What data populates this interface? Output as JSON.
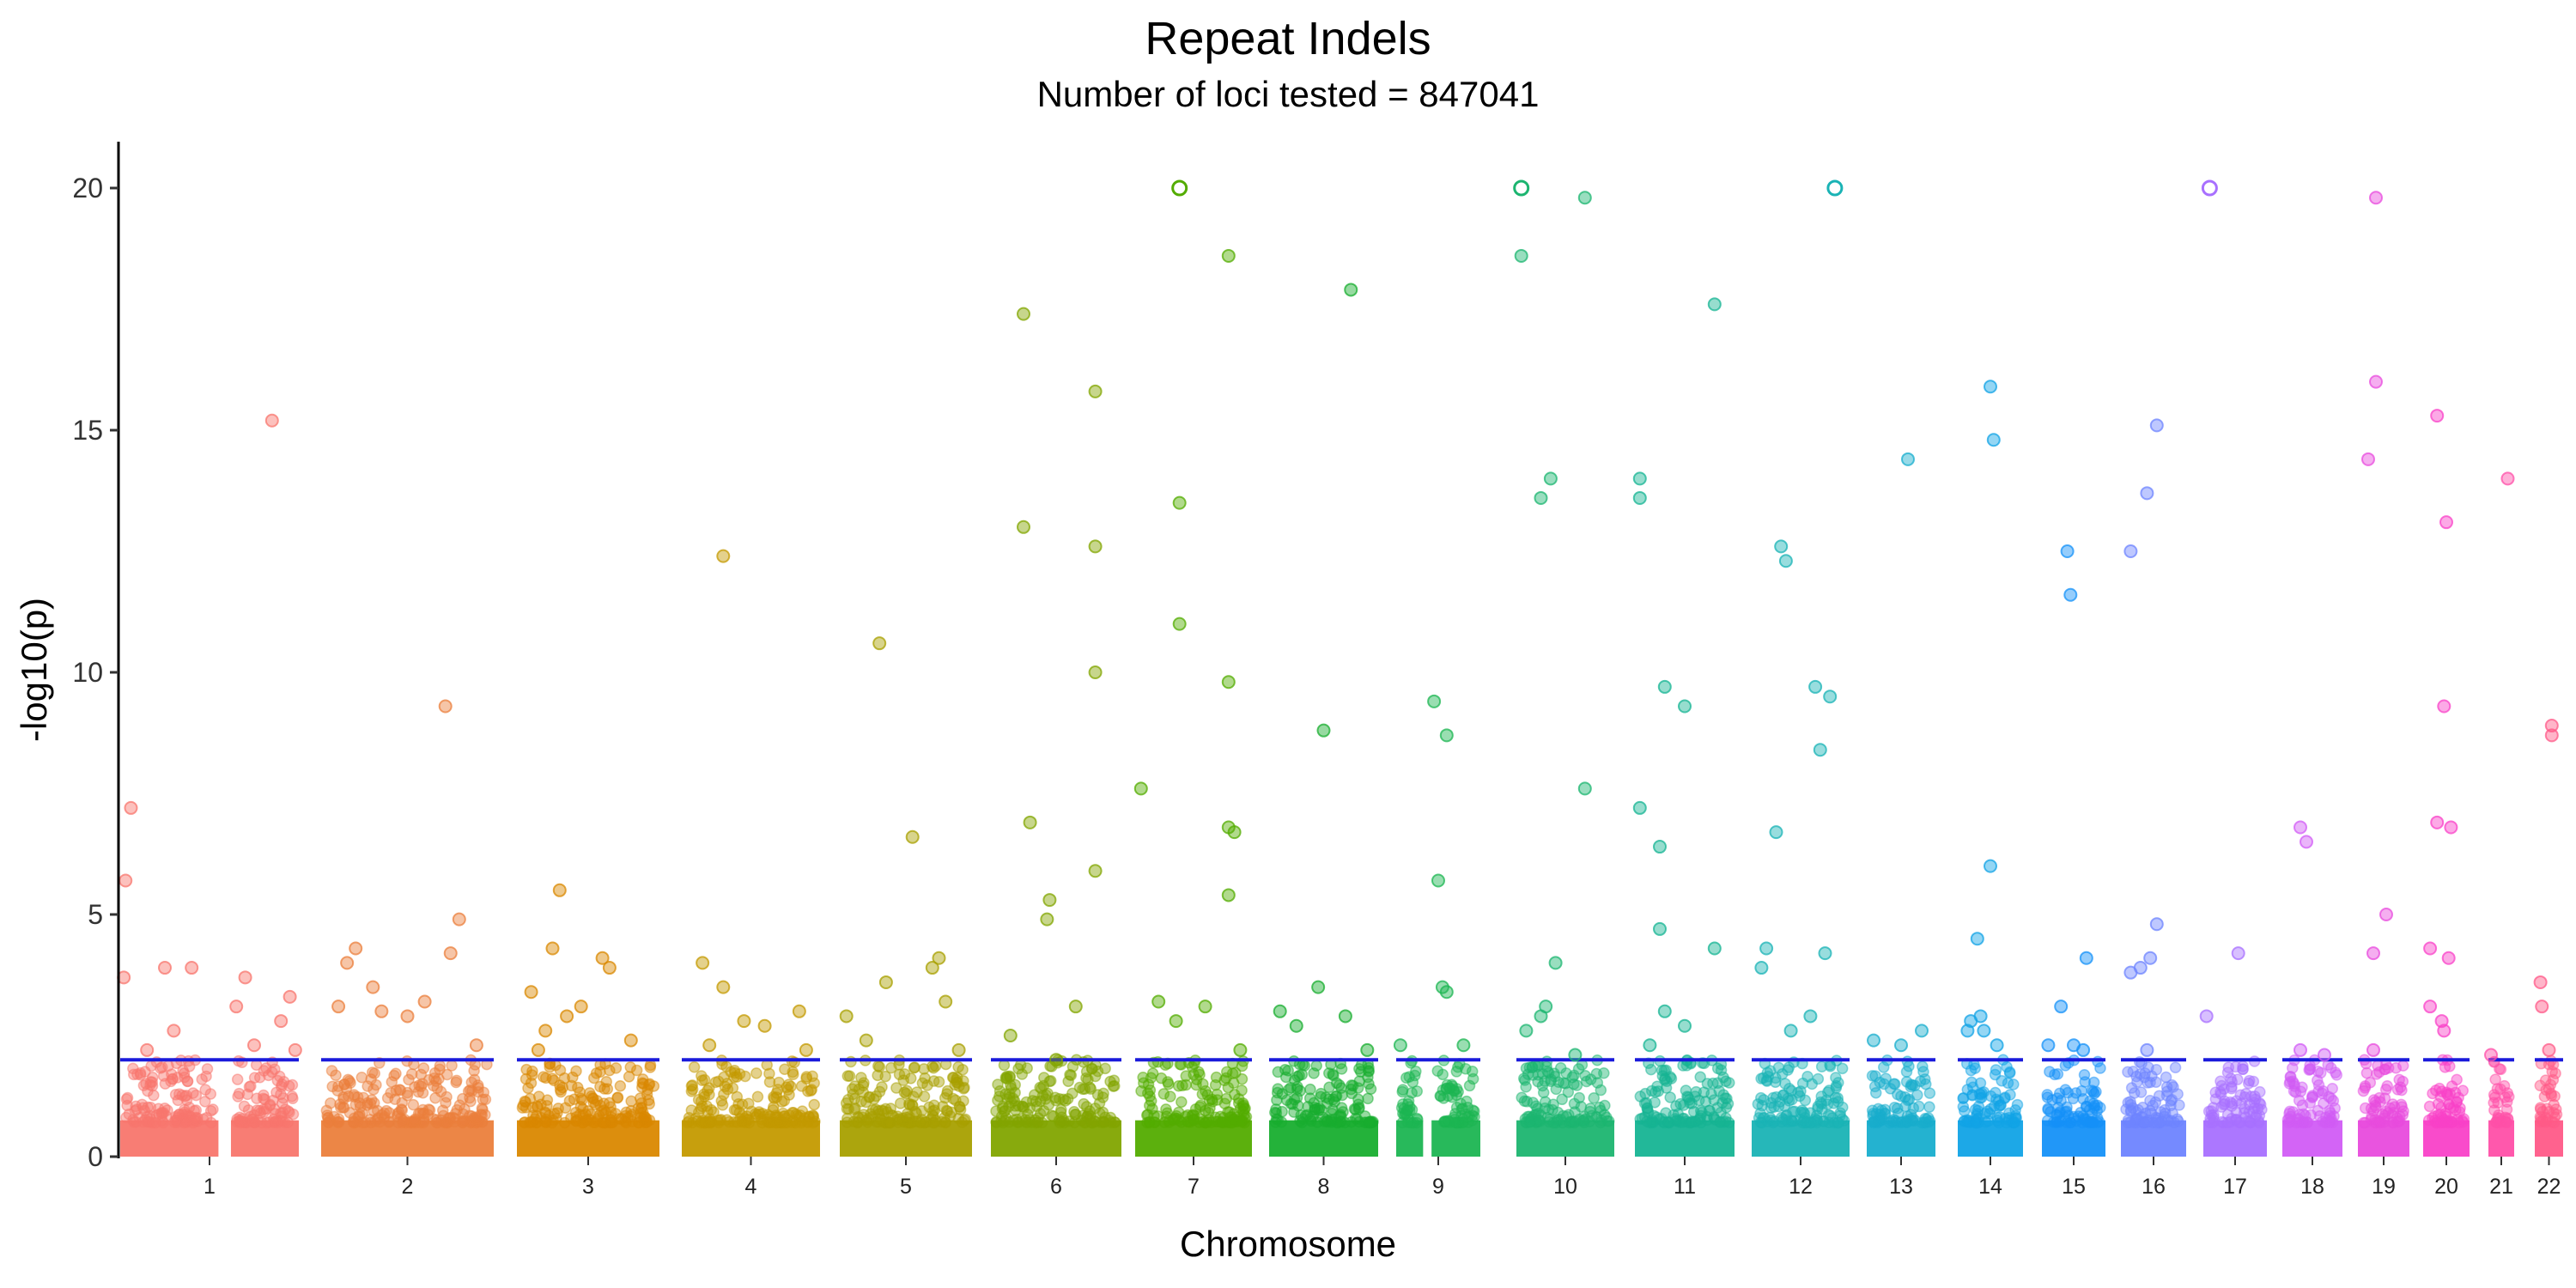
{
  "chart_data": {
    "type": "scatter",
    "title": "Repeat Indels",
    "subtitle": "Number of loci tested = 847041",
    "xlabel": "Chromosome",
    "ylabel": "-log10(p)",
    "ylim": [
      0,
      21
    ],
    "yticks": [
      "0",
      "5",
      "10",
      "15",
      "20"
    ],
    "threshold": 2,
    "threshold_color": "#1a1adb",
    "grid": false,
    "legend": "none",
    "chromosomes": [
      {
        "name": "1",
        "color": "#F8766D",
        "gap": [
          0.55,
          0.62
        ]
      },
      {
        "name": "2",
        "color": "#EB7F3C",
        "gap": null
      },
      {
        "name": "3",
        "color": "#DA8800",
        "gap": null
      },
      {
        "name": "4",
        "color": "#C49A00",
        "gap": null
      },
      {
        "name": "5",
        "color": "#A8A000",
        "gap": null
      },
      {
        "name": "6",
        "color": "#82A500",
        "gap": null
      },
      {
        "name": "7",
        "color": "#53AC00",
        "gap": null
      },
      {
        "name": "8",
        "color": "#18AE2F",
        "gap": null
      },
      {
        "name": "9",
        "color": "#1CB552",
        "gap": [
          0.32,
          0.42
        ]
      },
      {
        "name": "10",
        "color": "#1CB570",
        "gap": null
      },
      {
        "name": "11",
        "color": "#16B493",
        "gap": null
      },
      {
        "name": "12",
        "color": "#1AB3B5",
        "gap": null
      },
      {
        "name": "13",
        "color": "#18AECD",
        "gap": null
      },
      {
        "name": "14",
        "color": "#11A3E6",
        "gap": null
      },
      {
        "name": "15",
        "color": "#1591F8",
        "gap": null
      },
      {
        "name": "16",
        "color": "#6E84FF",
        "gap": null
      },
      {
        "name": "17",
        "color": "#A870FF",
        "gap": null
      },
      {
        "name": "18",
        "color": "#D15CF5",
        "gap": null
      },
      {
        "name": "19",
        "color": "#E84BDD",
        "gap": null
      },
      {
        "name": "20",
        "color": "#F941C8",
        "gap": null
      },
      {
        "name": "21",
        "color": "#FF4FA8",
        "gap": null
      },
      {
        "name": "22",
        "color": "#FF5A88",
        "gap": null
      }
    ],
    "outliers": [
      {
        "chr": "1",
        "points": [
          [
            0.06,
            7.2
          ],
          [
            0.03,
            5.7
          ],
          [
            0.02,
            3.7
          ],
          [
            0.85,
            15.2
          ],
          [
            0.25,
            3.9
          ],
          [
            0.4,
            3.9
          ],
          [
            0.7,
            3.7
          ],
          [
            0.65,
            3.1
          ],
          [
            0.95,
            3.3
          ],
          [
            0.9,
            2.8
          ],
          [
            0.75,
            2.3
          ],
          [
            0.15,
            2.2
          ],
          [
            0.3,
            2.6
          ],
          [
            0.98,
            2.2
          ]
        ]
      },
      {
        "chr": "2",
        "points": [
          [
            0.72,
            9.3
          ],
          [
            0.2,
            4.3
          ],
          [
            0.15,
            4.0
          ],
          [
            0.3,
            3.5
          ],
          [
            0.6,
            3.2
          ],
          [
            0.8,
            4.9
          ],
          [
            0.75,
            4.2
          ],
          [
            0.1,
            3.1
          ],
          [
            0.35,
            3.0
          ],
          [
            0.5,
            2.9
          ],
          [
            0.9,
            2.3
          ]
        ]
      },
      {
        "chr": "3",
        "points": [
          [
            0.3,
            5.5
          ],
          [
            0.25,
            4.3
          ],
          [
            0.6,
            4.1
          ],
          [
            0.65,
            3.9
          ],
          [
            0.1,
            3.4
          ],
          [
            0.45,
            3.1
          ],
          [
            0.35,
            2.9
          ],
          [
            0.2,
            2.6
          ],
          [
            0.8,
            2.4
          ],
          [
            0.15,
            2.2
          ]
        ]
      },
      {
        "chr": "4",
        "points": [
          [
            0.3,
            12.4
          ],
          [
            0.15,
            4.0
          ],
          [
            0.3,
            3.5
          ],
          [
            0.85,
            3.0
          ],
          [
            0.45,
            2.8
          ],
          [
            0.6,
            2.7
          ],
          [
            0.2,
            2.3
          ],
          [
            0.9,
            2.2
          ]
        ]
      },
      {
        "chr": "5",
        "points": [
          [
            0.3,
            10.6
          ],
          [
            0.55,
            6.6
          ],
          [
            0.7,
            3.9
          ],
          [
            0.75,
            4.1
          ],
          [
            0.35,
            3.6
          ],
          [
            0.05,
            2.9
          ],
          [
            0.8,
            3.2
          ],
          [
            0.2,
            2.4
          ],
          [
            0.9,
            2.2
          ]
        ]
      },
      {
        "chr": "6",
        "points": [
          [
            0.25,
            17.4
          ],
          [
            0.8,
            15.8
          ],
          [
            0.25,
            13.0
          ],
          [
            0.8,
            12.6
          ],
          [
            0.8,
            10.0
          ],
          [
            0.3,
            6.9
          ],
          [
            0.8,
            5.9
          ],
          [
            0.45,
            5.3
          ],
          [
            0.43,
            4.9
          ],
          [
            0.65,
            3.1
          ],
          [
            0.15,
            2.5
          ],
          [
            0.5,
            2.0
          ]
        ]
      },
      {
        "chr": "7",
        "points": [
          [
            0.38,
            13.5
          ],
          [
            0.38,
            11.0
          ],
          [
            0.8,
            18.6
          ],
          [
            0.8,
            9.8
          ],
          [
            0.05,
            7.6
          ],
          [
            0.8,
            6.8
          ],
          [
            0.85,
            6.7
          ],
          [
            0.8,
            5.4
          ],
          [
            0.2,
            3.2
          ],
          [
            0.6,
            3.1
          ],
          [
            0.35,
            2.8
          ],
          [
            0.9,
            2.2
          ]
        ]
      },
      {
        "chr": "8",
        "points": [
          [
            0.75,
            17.9
          ],
          [
            0.5,
            8.8
          ],
          [
            0.45,
            3.5
          ],
          [
            0.25,
            2.7
          ],
          [
            0.7,
            2.9
          ],
          [
            0.1,
            3.0
          ],
          [
            0.9,
            2.2
          ]
        ]
      },
      {
        "chr": "9",
        "points": [
          [
            0.45,
            9.4
          ],
          [
            0.6,
            8.7
          ],
          [
            0.5,
            5.7
          ],
          [
            0.55,
            3.5
          ],
          [
            0.6,
            3.4
          ],
          [
            0.05,
            2.3
          ],
          [
            0.8,
            2.3
          ]
        ]
      },
      {
        "chr": "10",
        "points": [
          [
            0.05,
            18.6
          ],
          [
            0.35,
            14.0
          ],
          [
            0.25,
            13.6
          ],
          [
            0.7,
            19.8
          ],
          [
            0.7,
            7.6
          ],
          [
            0.4,
            4.0
          ],
          [
            0.3,
            3.1
          ],
          [
            0.25,
            2.9
          ],
          [
            0.1,
            2.6
          ],
          [
            0.6,
            2.1
          ]
        ]
      },
      {
        "chr": "11",
        "points": [
          [
            0.05,
            14.0
          ],
          [
            0.05,
            13.6
          ],
          [
            0.8,
            17.6
          ],
          [
            0.3,
            9.7
          ],
          [
            0.5,
            9.3
          ],
          [
            0.05,
            7.2
          ],
          [
            0.25,
            6.4
          ],
          [
            0.25,
            4.7
          ],
          [
            0.8,
            4.3
          ],
          [
            0.3,
            3.0
          ],
          [
            0.5,
            2.7
          ],
          [
            0.15,
            2.3
          ]
        ]
      },
      {
        "chr": "12",
        "points": [
          [
            0.3,
            12.6
          ],
          [
            0.35,
            12.3
          ],
          [
            0.65,
            9.7
          ],
          [
            0.8,
            9.5
          ],
          [
            0.7,
            8.4
          ],
          [
            0.25,
            6.7
          ],
          [
            0.15,
            4.3
          ],
          [
            0.75,
            4.2
          ],
          [
            0.1,
            3.9
          ],
          [
            0.6,
            2.9
          ],
          [
            0.4,
            2.6
          ]
        ]
      },
      {
        "chr": "13",
        "points": [
          [
            0.6,
            14.4
          ],
          [
            0.1,
            2.4
          ],
          [
            0.5,
            2.3
          ],
          [
            0.8,
            2.6
          ]
        ]
      },
      {
        "chr": "14",
        "points": [
          [
            0.5,
            15.9
          ],
          [
            0.55,
            14.8
          ],
          [
            0.5,
            6.0
          ],
          [
            0.3,
            4.5
          ],
          [
            0.2,
            2.8
          ],
          [
            0.4,
            2.6
          ],
          [
            0.35,
            2.9
          ],
          [
            0.6,
            2.3
          ],
          [
            0.15,
            2.6
          ]
        ]
      },
      {
        "chr": "15",
        "points": [
          [
            0.4,
            12.5
          ],
          [
            0.45,
            11.6
          ],
          [
            0.7,
            4.1
          ],
          [
            0.3,
            3.1
          ],
          [
            0.5,
            2.3
          ],
          [
            0.1,
            2.3
          ],
          [
            0.65,
            2.2
          ]
        ]
      },
      {
        "chr": "16",
        "points": [
          [
            0.55,
            15.1
          ],
          [
            0.4,
            13.7
          ],
          [
            0.15,
            12.5
          ],
          [
            0.55,
            4.8
          ],
          [
            0.3,
            3.9
          ],
          [
            0.45,
            4.1
          ],
          [
            0.15,
            3.8
          ],
          [
            0.4,
            2.2
          ]
        ]
      },
      {
        "chr": "17",
        "points": [
          [
            0.55,
            4.2
          ],
          [
            0.05,
            2.9
          ]
        ]
      },
      {
        "chr": "18",
        "points": [
          [
            0.3,
            6.8
          ],
          [
            0.4,
            6.5
          ],
          [
            0.3,
            2.2
          ],
          [
            0.7,
            2.1
          ]
        ]
      },
      {
        "chr": "19",
        "points": [
          [
            0.35,
            19.8
          ],
          [
            0.35,
            16.0
          ],
          [
            0.2,
            14.4
          ],
          [
            0.55,
            5.0
          ],
          [
            0.3,
            4.2
          ],
          [
            0.3,
            2.2
          ]
        ]
      },
      {
        "chr": "20",
        "points": [
          [
            0.3,
            15.3
          ],
          [
            0.5,
            13.1
          ],
          [
            0.45,
            9.3
          ],
          [
            0.3,
            6.9
          ],
          [
            0.6,
            6.8
          ],
          [
            0.15,
            4.3
          ],
          [
            0.55,
            4.1
          ],
          [
            0.15,
            3.1
          ],
          [
            0.4,
            2.8
          ],
          [
            0.45,
            2.6
          ]
        ]
      },
      {
        "chr": "21",
        "points": [
          [
            0.75,
            14.0
          ],
          [
            0.1,
            2.1
          ]
        ]
      },
      {
        "chr": "22",
        "points": [
          [
            0.6,
            8.9
          ],
          [
            0.6,
            8.7
          ],
          [
            0.2,
            3.6
          ],
          [
            0.25,
            3.1
          ],
          [
            0.5,
            2.2
          ]
        ]
      }
    ],
    "capped_points": [
      {
        "chr": "7",
        "x": 0.38,
        "y": 20
      },
      {
        "chr": "10",
        "x": 0.05,
        "y": 20
      },
      {
        "chr": "12",
        "x": 0.85,
        "y": 20
      },
      {
        "chr": "17",
        "x": 0.1,
        "y": 20
      }
    ]
  }
}
